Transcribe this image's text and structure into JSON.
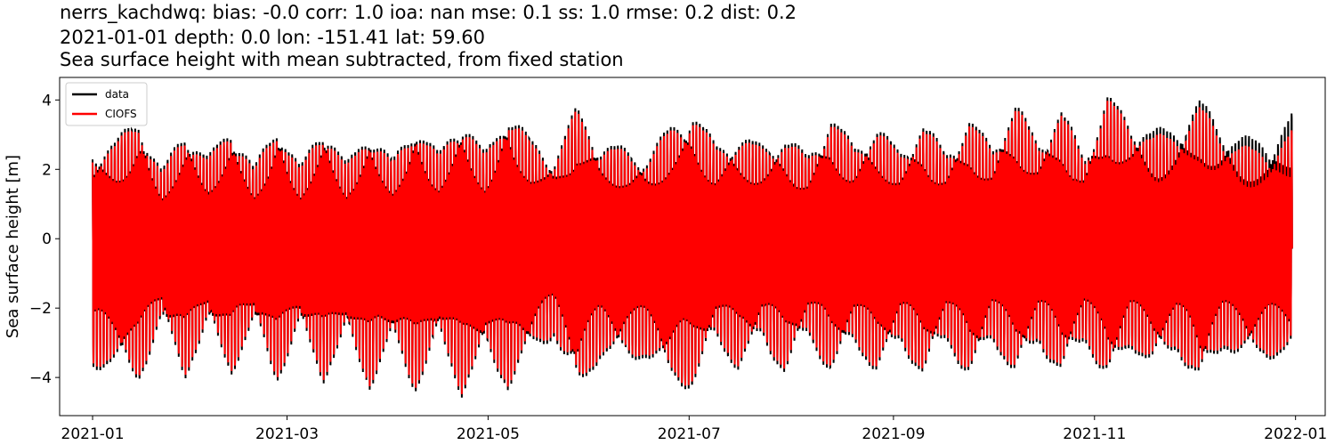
{
  "chart_data": {
    "type": "line",
    "title_lines": [
      "nerrs_kachdwq: bias: -0.0  corr: 1.0  ioa: nan  mse: 0.1  ss: 1.0  rmse: 0.2  dist: 0.2",
      "2021-01-01 depth: 0.0 lon: -151.41 lat: 59.60",
      "Sea surface height with mean subtracted, from fixed station"
    ],
    "xlabel": "",
    "ylabel": "Sea surface height [m]",
    "xlim": [
      "2020-12-22",
      "2022-01-10"
    ],
    "ylim": [
      -5.1,
      4.65
    ],
    "x_ticks": [
      "2021-01",
      "2021-03",
      "2021-05",
      "2021-07",
      "2021-09",
      "2021-11",
      "2022-01"
    ],
    "y_ticks": [
      4,
      2,
      0,
      -2,
      -4
    ],
    "y_tick_labels": [
      "4",
      "2",
      "0",
      "−2",
      "−4"
    ],
    "grid": false,
    "legend_position": "top-left",
    "series": [
      {
        "name": "data",
        "color": "#000000"
      },
      {
        "name": "CIOFS",
        "color": "#ff0000"
      }
    ],
    "envelope": {
      "x": [
        "2021-01-01",
        "2021-01-08",
        "2021-01-15",
        "2021-01-22",
        "2021-01-29",
        "2021-02-05",
        "2021-02-12",
        "2021-02-19",
        "2021-02-26",
        "2021-03-05",
        "2021-03-12",
        "2021-03-19",
        "2021-03-26",
        "2021-04-02",
        "2021-04-09",
        "2021-04-16",
        "2021-04-23",
        "2021-04-30",
        "2021-05-07",
        "2021-05-14",
        "2021-05-21",
        "2021-05-28",
        "2021-06-04",
        "2021-06-11",
        "2021-06-18",
        "2021-06-25",
        "2021-07-02",
        "2021-07-09",
        "2021-07-16",
        "2021-07-23",
        "2021-07-30",
        "2021-08-06",
        "2021-08-13",
        "2021-08-20",
        "2021-08-27",
        "2021-09-03",
        "2021-09-10",
        "2021-09-17",
        "2021-09-24",
        "2021-10-01",
        "2021-10-08",
        "2021-10-15",
        "2021-10-22",
        "2021-10-29",
        "2021-11-05",
        "2021-11-12",
        "2021-11-19",
        "2021-11-26",
        "2021-12-03",
        "2021-12-10",
        "2021-12-17",
        "2021-12-24",
        "2021-12-31"
      ],
      "data_high": [
        2.6,
        2.9,
        3.6,
        2.0,
        3.3,
        2.4,
        3.4,
        2.1,
        3.5,
        2.1,
        3.5,
        2.2,
        3.3,
        2.3,
        3.5,
        2.5,
        3.7,
        2.5,
        3.9,
        2.9,
        2.4,
        3.9,
        2.8,
        2.7,
        2.4,
        3.3,
        3.8,
        2.8,
        3.0,
        2.8,
        3.0,
        2.5,
        3.6,
        2.8,
        3.3,
        2.6,
        3.4,
        2.6,
        3.5,
        2.8,
        4.0,
        2.9,
        3.8,
        2.5,
        4.2,
        3.5,
        3.2,
        3.3,
        4.1,
        3.2,
        3.0,
        2.8,
        3.7
      ],
      "data_low": [
        -3.8,
        -3.8,
        -4.2,
        -2.5,
        -4.1,
        -2.6,
        -4.0,
        -2.6,
        -4.2,
        -2.7,
        -4.2,
        -2.9,
        -4.4,
        -3.1,
        -4.5,
        -3.0,
        -4.6,
        -3.4,
        -4.4,
        -3.4,
        -2.9,
        -4.6,
        -3.5,
        -3.6,
        -3.5,
        -4.2,
        -4.4,
        -3.0,
        -3.9,
        -3.0,
        -4.0,
        -2.9,
        -4.0,
        -3.1,
        -4.0,
        -3.1,
        -4.1,
        -3.0,
        -4.2,
        -3.0,
        -4.1,
        -3.1,
        -4.1,
        -3.0,
        -4.3,
        -3.2,
        -3.8,
        -3.3,
        -4.4,
        -3.2,
        -3.6,
        -3.5,
        -3.4
      ],
      "model_high": [
        2.5,
        2.8,
        3.5,
        1.9,
        3.2,
        2.3,
        3.3,
        2.0,
        3.4,
        2.0,
        3.4,
        2.1,
        3.2,
        2.2,
        3.4,
        2.4,
        3.6,
        2.4,
        3.8,
        2.8,
        2.3,
        3.8,
        2.7,
        2.6,
        2.3,
        3.2,
        3.7,
        2.7,
        2.9,
        2.7,
        2.9,
        2.4,
        3.5,
        2.7,
        3.2,
        2.5,
        3.3,
        2.5,
        3.4,
        2.7,
        3.9,
        2.8,
        3.7,
        2.4,
        4.1,
        3.4,
        3.0,
        3.1,
        3.9,
        3.0,
        2.7,
        2.5,
        3.2
      ],
      "model_low": [
        -3.7,
        -3.7,
        -4.1,
        -2.4,
        -4.0,
        -2.5,
        -3.9,
        -2.5,
        -4.1,
        -2.6,
        -4.1,
        -2.8,
        -4.3,
        -3.0,
        -4.4,
        -2.9,
        -4.5,
        -3.3,
        -4.3,
        -3.3,
        -2.8,
        -4.5,
        -3.4,
        -3.5,
        -3.4,
        -4.1,
        -4.3,
        -2.9,
        -3.8,
        -2.9,
        -3.9,
        -2.8,
        -3.9,
        -3.0,
        -3.9,
        -3.0,
        -4.0,
        -2.9,
        -4.1,
        -2.9,
        -4.0,
        -3.0,
        -4.0,
        -2.9,
        -4.2,
        -3.1,
        -3.7,
        -3.2,
        -4.3,
        -3.1,
        -3.5,
        -3.4,
        -3.3
      ]
    }
  }
}
